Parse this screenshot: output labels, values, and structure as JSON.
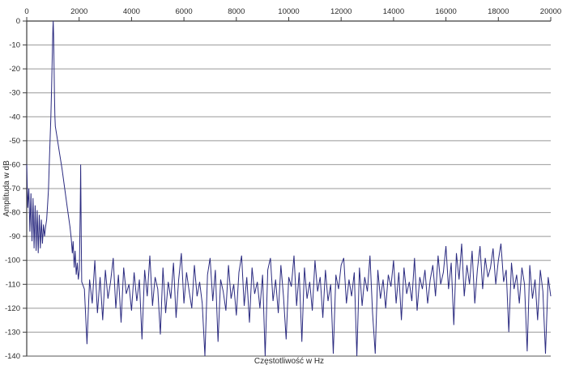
{
  "chart_data": {
    "type": "line",
    "title": "",
    "xlabel": "Częstotliwość w Hz",
    "ylabel": "Amplituda w dB",
    "xlim": [
      0,
      20000
    ],
    "ylim": [
      -140,
      0
    ],
    "grid": "horizontal-only",
    "legend": "none",
    "x_ticks": [
      0,
      2000,
      4000,
      6000,
      8000,
      10000,
      12000,
      14000,
      16000,
      18000,
      20000
    ],
    "x_tick_labels": [
      "0",
      "2000",
      "4000",
      "6000",
      "8000",
      "10000",
      "12000",
      "14000",
      "16000",
      "18000",
      "20000"
    ],
    "y_ticks": [
      0,
      -10,
      -20,
      -30,
      -40,
      -50,
      -60,
      -70,
      -80,
      -90,
      -100,
      -110,
      -120,
      -130,
      -140
    ],
    "y_tick_labels": [
      "0",
      "-10",
      "-20",
      "-30",
      "-40",
      "-50",
      "-60",
      "-70",
      "-80",
      "-90",
      "-100",
      "-110",
      "-120",
      "-130",
      "-140"
    ],
    "features": {
      "main_peak": {
        "freq_hz": 1000,
        "level_db": 0
      },
      "harmonic_peak": {
        "freq_hz": 2060,
        "level_db": -60
      },
      "noise_floor_mean_db": -110,
      "elevated_noise_region_hz": [
        15900,
        18300
      ]
    },
    "colors": {
      "line": "#2b2b80",
      "grid": "#999999",
      "axis": "#3c3c3c",
      "bottom_axis": "#555555",
      "label": "#2a2a2a",
      "background": "#ffffff"
    },
    "points": [
      [
        0,
        -60
      ],
      [
        40,
        -78
      ],
      [
        80,
        -70
      ],
      [
        120,
        -88
      ],
      [
        160,
        -72
      ],
      [
        200,
        -92
      ],
      [
        240,
        -74
      ],
      [
        280,
        -95
      ],
      [
        320,
        -77
      ],
      [
        360,
        -96
      ],
      [
        400,
        -79
      ],
      [
        440,
        -97
      ],
      [
        480,
        -81
      ],
      [
        520,
        -95
      ],
      [
        560,
        -83
      ],
      [
        600,
        -93
      ],
      [
        640,
        -85
      ],
      [
        680,
        -90
      ],
      [
        720,
        -86
      ],
      [
        760,
        -83
      ],
      [
        800,
        -76
      ],
      [
        830,
        -70
      ],
      [
        860,
        -60
      ],
      [
        890,
        -50
      ],
      [
        920,
        -40
      ],
      [
        950,
        -28
      ],
      [
        975,
        -15
      ],
      [
        1000,
        -3
      ],
      [
        1010,
        0
      ],
      [
        1025,
        -6
      ],
      [
        1045,
        -20
      ],
      [
        1060,
        -32
      ],
      [
        1075,
        -40
      ],
      [
        1090,
        -44
      ],
      [
        1150,
        -48
      ],
      [
        1250,
        -55
      ],
      [
        1350,
        -62
      ],
      [
        1450,
        -70
      ],
      [
        1550,
        -78
      ],
      [
        1650,
        -86
      ],
      [
        1700,
        -91
      ],
      [
        1740,
        -97
      ],
      [
        1770,
        -92
      ],
      [
        1810,
        -103
      ],
      [
        1850,
        -96
      ],
      [
        1890,
        -106
      ],
      [
        1930,
        -101
      ],
      [
        1970,
        -108
      ],
      [
        2010,
        -104
      ],
      [
        2040,
        -80
      ],
      [
        2060,
        -60
      ],
      [
        2080,
        -90
      ],
      [
        2100,
        -109
      ],
      [
        2200,
        -112
      ],
      [
        2300,
        -135
      ],
      [
        2400,
        -108
      ],
      [
        2500,
        -118
      ],
      [
        2600,
        -100
      ],
      [
        2700,
        -122
      ],
      [
        2800,
        -107
      ],
      [
        2900,
        -125
      ],
      [
        3000,
        -104
      ],
      [
        3100,
        -116
      ],
      [
        3200,
        -109
      ],
      [
        3300,
        -99
      ],
      [
        3400,
        -120
      ],
      [
        3500,
        -106
      ],
      [
        3600,
        -126
      ],
      [
        3700,
        -103
      ],
      [
        3800,
        -114
      ],
      [
        3900,
        -110
      ],
      [
        4000,
        -121
      ],
      [
        4100,
        -105
      ],
      [
        4200,
        -117
      ],
      [
        4300,
        -108
      ],
      [
        4400,
        -133
      ],
      [
        4500,
        -104
      ],
      [
        4600,
        -115
      ],
      [
        4700,
        -98
      ],
      [
        4800,
        -119
      ],
      [
        4900,
        -107
      ],
      [
        5000,
        -112
      ],
      [
        5100,
        -131
      ],
      [
        5200,
        -103
      ],
      [
        5300,
        -122
      ],
      [
        5400,
        -109
      ],
      [
        5500,
        -116
      ],
      [
        5600,
        -101
      ],
      [
        5700,
        -124
      ],
      [
        5800,
        -108
      ],
      [
        5900,
        -97
      ],
      [
        6000,
        -118
      ],
      [
        6100,
        -105
      ],
      [
        6200,
        -113
      ],
      [
        6300,
        -120
      ],
      [
        6400,
        -102
      ],
      [
        6500,
        -115
      ],
      [
        6600,
        -109
      ],
      [
        6700,
        -118
      ],
      [
        6800,
        -140
      ],
      [
        6900,
        -106
      ],
      [
        7000,
        -99
      ],
      [
        7100,
        -117
      ],
      [
        7200,
        -104
      ],
      [
        7300,
        -134
      ],
      [
        7400,
        -108
      ],
      [
        7500,
        -113
      ],
      [
        7600,
        -121
      ],
      [
        7700,
        -102
      ],
      [
        7800,
        -116
      ],
      [
        7900,
        -110
      ],
      [
        8000,
        -123
      ],
      [
        8100,
        -105
      ],
      [
        8200,
        -98
      ],
      [
        8300,
        -119
      ],
      [
        8400,
        -107
      ],
      [
        8500,
        -126
      ],
      [
        8600,
        -103
      ],
      [
        8700,
        -114
      ],
      [
        8800,
        -109
      ],
      [
        8900,
        -120
      ],
      [
        9000,
        -106
      ],
      [
        9100,
        -140
      ],
      [
        9200,
        -104
      ],
      [
        9300,
        -99
      ],
      [
        9400,
        -117
      ],
      [
        9500,
        -108
      ],
      [
        9600,
        -122
      ],
      [
        9700,
        -102
      ],
      [
        9800,
        -115
      ],
      [
        9900,
        -133
      ],
      [
        10000,
        -107
      ],
      [
        10100,
        -111
      ],
      [
        10200,
        -98
      ],
      [
        10300,
        -119
      ],
      [
        10400,
        -105
      ],
      [
        10500,
        -134
      ],
      [
        10600,
        -103
      ],
      [
        10700,
        -116
      ],
      [
        10800,
        -109
      ],
      [
        10900,
        -121
      ],
      [
        11000,
        -100
      ],
      [
        11100,
        -113
      ],
      [
        11200,
        -107
      ],
      [
        11300,
        -124
      ],
      [
        11400,
        -104
      ],
      [
        11500,
        -117
      ],
      [
        11600,
        -110
      ],
      [
        11700,
        -139
      ],
      [
        11800,
        -106
      ],
      [
        11900,
        -112
      ],
      [
        12000,
        -102
      ],
      [
        12100,
        -99
      ],
      [
        12200,
        -118
      ],
      [
        12300,
        -108
      ],
      [
        12400,
        -115
      ],
      [
        12500,
        -105
      ],
      [
        12600,
        -140
      ],
      [
        12700,
        -103
      ],
      [
        12800,
        -119
      ],
      [
        12900,
        -107
      ],
      [
        13000,
        -113
      ],
      [
        13100,
        -98
      ],
      [
        13200,
        -122
      ],
      [
        13300,
        -139
      ],
      [
        13400,
        -104
      ],
      [
        13500,
        -116
      ],
      [
        13600,
        -108
      ],
      [
        13700,
        -120
      ],
      [
        13800,
        -106
      ],
      [
        13900,
        -111
      ],
      [
        14000,
        -100
      ],
      [
        14100,
        -118
      ],
      [
        14200,
        -105
      ],
      [
        14300,
        -125
      ],
      [
        14400,
        -103
      ],
      [
        14500,
        -114
      ],
      [
        14600,
        -109
      ],
      [
        14700,
        -117
      ],
      [
        14800,
        -99
      ],
      [
        14900,
        -121
      ],
      [
        15000,
        -107
      ],
      [
        15100,
        -112
      ],
      [
        15200,
        -104
      ],
      [
        15300,
        -118
      ],
      [
        15400,
        -108
      ],
      [
        15500,
        -102
      ],
      [
        15600,
        -115
      ],
      [
        15700,
        -98
      ],
      [
        15800,
        -110
      ],
      [
        15900,
        -105
      ],
      [
        16000,
        -94
      ],
      [
        16100,
        -112
      ],
      [
        16200,
        -101
      ],
      [
        16300,
        -127
      ],
      [
        16400,
        -97
      ],
      [
        16500,
        -108
      ],
      [
        16600,
        -93
      ],
      [
        16700,
        -115
      ],
      [
        16800,
        -102
      ],
      [
        16900,
        -110
      ],
      [
        17000,
        -96
      ],
      [
        17100,
        -118
      ],
      [
        17200,
        -104
      ],
      [
        17300,
        -94
      ],
      [
        17400,
        -112
      ],
      [
        17500,
        -99
      ],
      [
        17600,
        -107
      ],
      [
        17700,
        -103
      ],
      [
        17800,
        -95
      ],
      [
        17900,
        -110
      ],
      [
        18000,
        -100
      ],
      [
        18100,
        -93
      ],
      [
        18200,
        -109
      ],
      [
        18300,
        -104
      ],
      [
        18400,
        -130
      ],
      [
        18500,
        -101
      ],
      [
        18600,
        -112
      ],
      [
        18700,
        -106
      ],
      [
        18800,
        -118
      ],
      [
        18900,
        -103
      ],
      [
        19000,
        -110
      ],
      [
        19100,
        -138
      ],
      [
        19200,
        -102
      ],
      [
        19300,
        -116
      ],
      [
        19400,
        -108
      ],
      [
        19500,
        -125
      ],
      [
        19600,
        -104
      ],
      [
        19700,
        -113
      ],
      [
        19800,
        -139
      ],
      [
        19900,
        -107
      ],
      [
        20000,
        -115
      ]
    ]
  }
}
